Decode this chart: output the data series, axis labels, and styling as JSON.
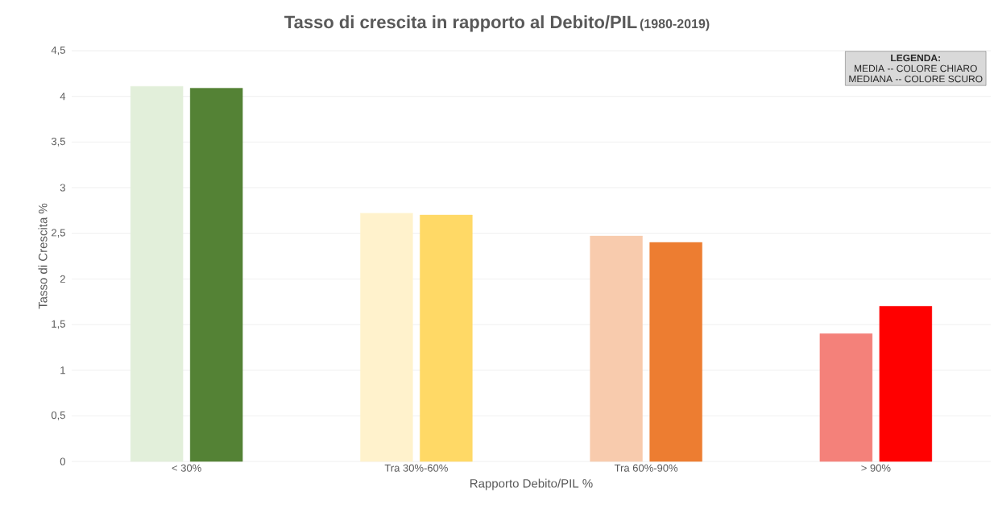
{
  "chart_data": {
    "type": "bar",
    "title": "Tasso di crescita  in rapporto al Debito/PIL",
    "subtitle": "(1980-2019)",
    "xlabel": "Rapporto  Debito/PIL %",
    "ylabel": "Tasso di Crescita  %",
    "categories": [
      "< 30%",
      "Tra 30%-60%",
      "Tra 60%-90%",
      "> 90%"
    ],
    "series": [
      {
        "colors": [
          "#e2efda",
          "#fff2cc",
          "#f8cbad",
          "#f4817a"
        ],
        "values": [
          4.11,
          2.72,
          2.47,
          1.4
        ]
      },
      {
        "colors": [
          "#548235",
          "#ffd966",
          "#ed7d31",
          "#ff0000"
        ],
        "values": [
          4.09,
          2.7,
          2.4,
          1.7
        ]
      }
    ],
    "ylim": [
      0,
      4.5
    ],
    "yticks": [
      {
        "value": 0,
        "label": "0"
      },
      {
        "value": 0.5,
        "label": "0,5"
      },
      {
        "value": 1,
        "label": "1"
      },
      {
        "value": 1.5,
        "label": "1,5"
      },
      {
        "value": 2,
        "label": "2"
      },
      {
        "value": 2.5,
        "label": "2,5"
      },
      {
        "value": 3,
        "label": "3"
      },
      {
        "value": 3.5,
        "label": "3,5"
      },
      {
        "value": 4,
        "label": "4"
      },
      {
        "value": 4.5,
        "label": "4,5"
      }
    ],
    "grid": "y",
    "annotations": [
      "LEGENDA:",
      "MEDIA -- COLORE CHIARO",
      "MEDIANA -- COLORE SCURO"
    ]
  }
}
